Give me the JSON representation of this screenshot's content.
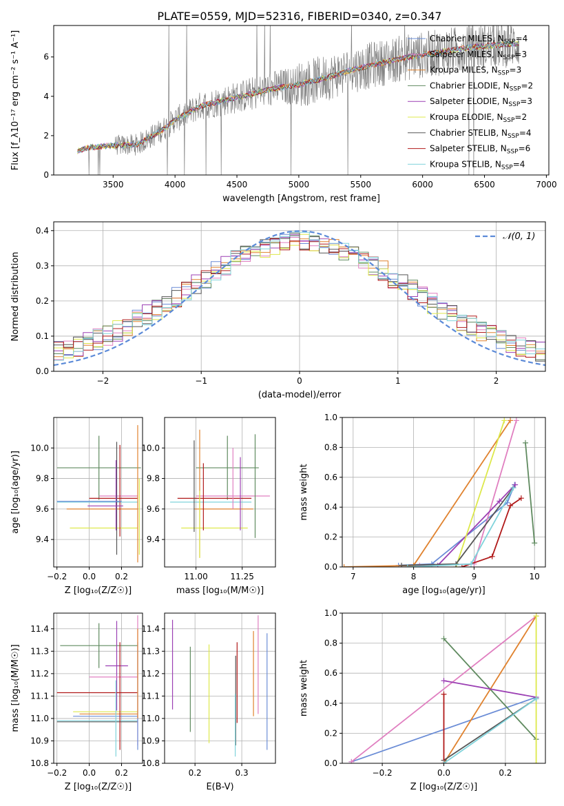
{
  "figure": {
    "title": "PLATE=0559, MJD=52316, FIBERID=0340, z=0.347"
  },
  "colors": {
    "chabrier_miles": "#6a8cd6",
    "salpeter_miles": "#e07fc0",
    "kroupa_miles": "#e0822e",
    "chabrier_elodie": "#5f8a5f",
    "salpeter_elodie": "#9b3fb3",
    "kroupa_elodie": "#dde84a",
    "chabrier_stelib": "#555555",
    "salpeter_stelib": "#b01818",
    "kroupa_stelib": "#7fd3db",
    "observed": "#808080",
    "normal": "#5b8ad8",
    "grid": "#b0b0b0"
  },
  "chart_data": [
    {
      "id": "spectrum",
      "type": "line",
      "title": "PLATE=0559, MJD=52316, FIBERID=0340, z=0.347",
      "xlabel": "wavelength [Angstrom, rest frame]",
      "ylabel": "Flux [f_λ10⁻¹⁷ erg cm⁻² s⁻¹ A⁻¹]",
      "xlim": [
        3020,
        7020
      ],
      "ylim": [
        0,
        7.6
      ],
      "xticks": [
        3500,
        4000,
        4500,
        5000,
        5500,
        6000,
        6500,
        7000
      ],
      "yticks": [
        0,
        2,
        4,
        6
      ],
      "grid": false,
      "legend_position": "top-right",
      "legend": [
        {
          "name": "Chabrier MILES, N",
          "sub": "SSP",
          "suffix": "=4",
          "color": "chabrier_miles"
        },
        {
          "name": "Salpeter MILES, N",
          "sub": "SSP",
          "suffix": "=3",
          "color": "salpeter_miles"
        },
        {
          "name": "Kroupa MILES, N",
          "sub": "SSP",
          "suffix": "=3",
          "color": "kroupa_miles"
        },
        {
          "name": "Chabrier ELODIE, N",
          "sub": "SSP",
          "suffix": "=2",
          "color": "chabrier_elodie"
        },
        {
          "name": "Salpeter ELODIE, N",
          "sub": "SSP",
          "suffix": "=3",
          "color": "salpeter_elodie"
        },
        {
          "name": "Kroupa ELODIE, N",
          "sub": "SSP",
          "suffix": "=2",
          "color": "kroupa_elodie"
        },
        {
          "name": "Chabrier STELIB, N",
          "sub": "SSP",
          "suffix": "=4",
          "color": "chabrier_stelib"
        },
        {
          "name": "Salpeter STELIB, N",
          "sub": "SSP",
          "suffix": "=6",
          "color": "salpeter_stelib"
        },
        {
          "name": "Kroupa STELIB, N",
          "sub": "SSP",
          "suffix": "=4",
          "color": "kroupa_stelib"
        }
      ],
      "continuum": {
        "x": [
          3210,
          3300,
          3500,
          3700,
          3900,
          4000,
          4200,
          4400,
          4600,
          4800,
          5000,
          5200,
          5400,
          5600,
          5800,
          6000,
          6200,
          6400,
          6600,
          6800
        ],
        "y": [
          1.2,
          1.4,
          1.5,
          1.55,
          2.3,
          2.8,
          3.5,
          3.8,
          4.1,
          4.4,
          4.6,
          4.9,
          5.3,
          5.6,
          5.9,
          6.1,
          6.3,
          6.5,
          6.6,
          6.7
        ]
      }
    },
    {
      "id": "residuals",
      "type": "line",
      "xlabel": "(data-model)/error",
      "ylabel": "Normed distribution",
      "xlim": [
        -2.5,
        2.5
      ],
      "ylim": [
        0,
        0.425
      ],
      "xticks": [
        -2,
        -1,
        0,
        1,
        2
      ],
      "yticks": [
        0.0,
        0.1,
        0.2,
        0.3,
        0.4
      ],
      "grid": true,
      "legend_position": "top-right",
      "legend_label": "𝒩(0, 1)",
      "normal": {
        "mean": 0,
        "sigma": 1
      }
    },
    {
      "id": "age_vs_Z",
      "type": "scatter",
      "xlabel": "Z [log₁₀(Z/Z☉)]",
      "ylabel": "age  [log₁₀(age/yr)]",
      "xlim": [
        -0.22,
        0.33
      ],
      "ylim": [
        9.22,
        10.2
      ],
      "xticks": [
        -0.2,
        0.0,
        0.2
      ],
      "yticks": [
        9.4,
        9.6,
        9.8,
        10.0
      ],
      "grid": true,
      "points": [
        {
          "x": 0.06,
          "y": 9.87,
          "xerr": 0.26,
          "yerr": 0.21,
          "color": "chabrier_elodie"
        },
        {
          "x": 0.18,
          "y": 9.685,
          "xerr": 0.12,
          "yerr": 0.0,
          "color": "salpeter_miles"
        },
        {
          "x": 0.15,
          "y": 9.67,
          "xerr": 0.15,
          "yerr": 0.0,
          "color": "salpeter_stelib"
        },
        {
          "x": 0.05,
          "y": 9.645,
          "xerr": 0.25,
          "yerr": 0.0,
          "color": "kroupa_stelib"
        },
        {
          "x": 0.08,
          "y": 9.6,
          "xerr": 0.22,
          "yerr": 0.0,
          "color": "kroupa_miles"
        },
        {
          "x": 0.09,
          "y": 9.475,
          "xerr": 0.21,
          "yerr": 0.0,
          "color": "kroupa_elodie"
        },
        {
          "x": 0.17,
          "y": 9.67,
          "xerr": 0.0,
          "yerr": 0.37,
          "color": "chabrier_stelib"
        },
        {
          "x": 0.166,
          "y": 9.69,
          "xerr": 0.0,
          "yerr": 0.23,
          "color": "salpeter_elodie"
        },
        {
          "x": 0.19,
          "y": 9.72,
          "xerr": 0.0,
          "yerr": 0.3,
          "color": "salpeter_stelib"
        },
        {
          "x": 0.3,
          "y": 9.7,
          "xerr": 0.0,
          "yerr": 0.45,
          "color": "kroupa_miles"
        },
        {
          "x": 0.31,
          "y": 9.55,
          "xerr": 0.0,
          "yerr": 0.25,
          "color": "kroupa_elodie"
        },
        {
          "x": 0.1,
          "y": 9.62,
          "xerr": 0.11,
          "yerr": 0.0,
          "color": "salpeter_elodie"
        },
        {
          "x": 0.0,
          "y": 9.65,
          "xerr": 0.2,
          "yerr": 0.0,
          "color": "chabrier_miles"
        }
      ]
    },
    {
      "id": "age_vs_mass",
      "type": "scatter",
      "xlabel": "mass [log₁₀(M/M☉)]",
      "ylabel": "",
      "xlim": [
        10.83,
        11.43
      ],
      "ylim": [
        9.22,
        10.2
      ],
      "xticks": [
        11.0,
        11.25
      ],
      "yticks": [
        9.4,
        9.6,
        9.8,
        10.0
      ],
      "grid": true,
      "points": [
        {
          "x": 11.17,
          "y": 9.87,
          "xerr": 0.17,
          "yerr": 0.21,
          "color": "chabrier_elodie"
        },
        {
          "x": 11.2,
          "y": 9.685,
          "xerr": 0.2,
          "yerr": 0.0,
          "color": "salpeter_miles"
        },
        {
          "x": 11.1,
          "y": 9.67,
          "xerr": 0.2,
          "yerr": 0.0,
          "color": "salpeter_stelib"
        },
        {
          "x": 11.08,
          "y": 9.645,
          "xerr": 0.22,
          "yerr": 0.0,
          "color": "kroupa_stelib"
        },
        {
          "x": 11.15,
          "y": 9.6,
          "xerr": 0.16,
          "yerr": 0.0,
          "color": "kroupa_miles"
        },
        {
          "x": 11.1,
          "y": 9.475,
          "xerr": 0.18,
          "yerr": 0.0,
          "color": "kroupa_elodie"
        },
        {
          "x": 10.99,
          "y": 9.75,
          "xerr": 0.0,
          "yerr": 0.3,
          "color": "chabrier_stelib"
        },
        {
          "x": 11.02,
          "y": 9.7,
          "xerr": 0.0,
          "yerr": 0.42,
          "color": "kroupa_miles"
        },
        {
          "x": 11.04,
          "y": 9.68,
          "xerr": 0.0,
          "yerr": 0.22,
          "color": "salpeter_stelib"
        },
        {
          "x": 11.02,
          "y": 9.5,
          "xerr": 0.0,
          "yerr": 0.22,
          "color": "kroupa_elodie"
        },
        {
          "x": 11.2,
          "y": 9.8,
          "xerr": 0.0,
          "yerr": 0.2,
          "color": "salpeter_miles"
        },
        {
          "x": 11.24,
          "y": 9.7,
          "xerr": 0.0,
          "yerr": 0.24,
          "color": "salpeter_elodie"
        },
        {
          "x": 11.32,
          "y": 9.75,
          "xerr": 0.0,
          "yerr": 0.34,
          "color": "chabrier_elodie"
        }
      ]
    },
    {
      "id": "mass_weight_vs_age",
      "type": "line",
      "xlabel": "age  [log₁₀(age/yr)]",
      "ylabel": "mass weight",
      "xlim": [
        6.82,
        10.18
      ],
      "ylim": [
        0,
        1.0
      ],
      "xticks": [
        7,
        8,
        9,
        10
      ],
      "yticks": [
        0.0,
        0.2,
        0.4,
        0.6,
        0.8,
        1.0
      ],
      "grid": true,
      "series": [
        {
          "color": "chabrier_miles",
          "x": [
            7.75,
            8.3,
            9.55,
            9.67
          ],
          "y": [
            0.01,
            0.02,
            0.43,
            0.55
          ]
        },
        {
          "color": "salpeter_miles",
          "x": [
            8.1,
            9.0,
            9.7
          ],
          "y": [
            0.01,
            0.02,
            0.98
          ]
        },
        {
          "color": "kroupa_miles",
          "x": [
            6.85,
            8.0,
            9.6
          ],
          "y": [
            0.0,
            0.01,
            0.98
          ]
        },
        {
          "color": "chabrier_elodie",
          "x": [
            9.85,
            10.0
          ],
          "y": [
            0.83,
            0.16
          ]
        },
        {
          "color": "salpeter_elodie",
          "x": [
            8.4,
            9.42,
            9.68
          ],
          "y": [
            0.01,
            0.44,
            0.55
          ]
        },
        {
          "color": "kroupa_elodie",
          "x": [
            8.7,
            9.5
          ],
          "y": [
            0.0,
            0.98
          ]
        },
        {
          "color": "chabrier_stelib",
          "x": [
            7.8,
            8.7,
            9.65
          ],
          "y": [
            0.01,
            0.02,
            0.53
          ]
        },
        {
          "color": "salpeter_stelib",
          "x": [
            8.8,
            9.3,
            9.6,
            9.78
          ],
          "y": [
            0.0,
            0.07,
            0.41,
            0.46
          ]
        },
        {
          "color": "kroupa_stelib",
          "x": [
            7.9,
            8.95,
            9.65
          ],
          "y": [
            0.0,
            0.02,
            0.53
          ]
        }
      ]
    },
    {
      "id": "mass_vs_Z",
      "type": "scatter",
      "xlabel": "Z [log₁₀(Z/Z☉)]",
      "ylabel": "mass [log₁₀(M/M☉)]",
      "xlim": [
        -0.22,
        0.33
      ],
      "ylim": [
        10.8,
        11.47
      ],
      "xticks": [
        -0.2,
        0.0,
        0.2
      ],
      "yticks": [
        10.8,
        10.9,
        11.0,
        11.1,
        11.2,
        11.3,
        11.4
      ],
      "grid": true,
      "points": [
        {
          "x": 0.06,
          "y": 11.325,
          "xerr": 0.24,
          "yerr": 0.1,
          "color": "chabrier_elodie"
        },
        {
          "x": 0.17,
          "y": 11.235,
          "xerr": 0.07,
          "yerr": 0.2,
          "color": "salpeter_elodie"
        },
        {
          "x": 0.15,
          "y": 11.185,
          "xerr": 0.15,
          "yerr": 0.0,
          "color": "salpeter_miles"
        },
        {
          "x": 0.05,
          "y": 11.115,
          "xerr": 0.25,
          "yerr": 0.0,
          "color": "salpeter_stelib"
        },
        {
          "x": 0.1,
          "y": 11.03,
          "xerr": 0.2,
          "yerr": 0.0,
          "color": "kroupa_elodie"
        },
        {
          "x": 0.12,
          "y": 11.02,
          "xerr": 0.18,
          "yerr": 0.0,
          "color": "kroupa_miles"
        },
        {
          "x": 0.1,
          "y": 11.01,
          "xerr": 0.2,
          "yerr": 0.0,
          "color": "chabrier_miles"
        },
        {
          "x": 0.05,
          "y": 10.99,
          "xerr": 0.25,
          "yerr": 0.0,
          "color": "kroupa_stelib"
        },
        {
          "x": 0.05,
          "y": 10.985,
          "xerr": 0.25,
          "yerr": 0.0,
          "color": "chabrier_stelib"
        },
        {
          "x": 0.165,
          "y": 11.0,
          "xerr": 0.0,
          "yerr": 0.17,
          "color": "kroupa_stelib"
        },
        {
          "x": 0.19,
          "y": 11.1,
          "xerr": 0.0,
          "yerr": 0.24,
          "color": "salpeter_stelib"
        },
        {
          "x": 0.3,
          "y": 11.17,
          "xerr": 0.0,
          "yerr": 0.29,
          "color": "salpeter_miles"
        },
        {
          "x": 0.3,
          "y": 11.1,
          "xerr": 0.0,
          "yerr": 0.24,
          "color": "chabrier_miles"
        },
        {
          "x": 0.3,
          "y": 11.2,
          "xerr": 0.0,
          "yerr": 0.2,
          "color": "kroupa_miles"
        }
      ]
    },
    {
      "id": "mass_vs_ebv",
      "type": "scatter",
      "xlabel": "E(B-V)",
      "ylabel": "",
      "xlim": [
        0.135,
        0.372
      ],
      "ylim": [
        10.8,
        11.47
      ],
      "xticks": [
        0.2,
        0.3
      ],
      "yticks": [
        10.8,
        10.9,
        11.0,
        11.1,
        11.2,
        11.3,
        11.4
      ],
      "grid": true,
      "points": [
        {
          "x": 0.152,
          "y": 11.24,
          "xerr": 0.0,
          "yerr": 0.2,
          "color": "salpeter_elodie"
        },
        {
          "x": 0.19,
          "y": 11.13,
          "xerr": 0.0,
          "yerr": 0.19,
          "color": "chabrier_elodie"
        },
        {
          "x": 0.23,
          "y": 11.11,
          "xerr": 0.0,
          "yerr": 0.22,
          "color": "kroupa_elodie"
        },
        {
          "x": 0.287,
          "y": 11.08,
          "xerr": 0.0,
          "yerr": 0.2,
          "color": "chabrier_stelib"
        },
        {
          "x": 0.29,
          "y": 11.16,
          "xerr": 0.0,
          "yerr": 0.18,
          "color": "salpeter_stelib"
        },
        {
          "x": 0.286,
          "y": 10.97,
          "xerr": 0.0,
          "yerr": 0.14,
          "color": "kroupa_stelib"
        },
        {
          "x": 0.325,
          "y": 11.2,
          "xerr": 0.0,
          "yerr": 0.19,
          "color": "kroupa_miles"
        },
        {
          "x": 0.335,
          "y": 11.24,
          "xerr": 0.0,
          "yerr": 0.22,
          "color": "salpeter_miles"
        },
        {
          "x": 0.354,
          "y": 11.12,
          "xerr": 0.0,
          "yerr": 0.26,
          "color": "chabrier_miles"
        }
      ]
    },
    {
      "id": "mass_weight_vs_Z",
      "type": "line",
      "xlabel": "Z [log₁₀(Z/Z☉)]",
      "ylabel": "mass weight",
      "xlim": [
        -0.33,
        0.33
      ],
      "ylim": [
        0,
        1.0
      ],
      "xticks": [
        -0.2,
        0.0,
        0.2
      ],
      "yticks": [
        0.0,
        0.2,
        0.4,
        0.6,
        0.8,
        1.0
      ],
      "grid": true,
      "series": [
        {
          "color": "chabrier_miles",
          "x": [
            -0.3,
            0.3
          ],
          "y": [
            0.01,
            0.44
          ]
        },
        {
          "color": "salpeter_miles",
          "x": [
            -0.3,
            0.3
          ],
          "y": [
            0.01,
            0.98
          ]
        },
        {
          "color": "kroupa_miles",
          "x": [
            0.0,
            0.3
          ],
          "y": [
            0.0,
            0.98
          ]
        },
        {
          "color": "chabrier_elodie",
          "x": [
            0.0,
            0.3
          ],
          "y": [
            0.83,
            0.16
          ]
        },
        {
          "color": "salpeter_elodie",
          "x": [
            0.0,
            0.3
          ],
          "y": [
            0.55,
            0.44
          ]
        },
        {
          "color": "kroupa_elodie",
          "x": [
            0.3,
            0.3
          ],
          "y": [
            0.0,
            0.98
          ]
        },
        {
          "color": "chabrier_stelib",
          "x": [
            0.0,
            0.3
          ],
          "y": [
            0.02,
            0.43
          ]
        },
        {
          "color": "salpeter_stelib",
          "x": [
            0.0,
            0.0
          ],
          "y": [
            0.0,
            0.46
          ]
        },
        {
          "color": "kroupa_stelib",
          "x": [
            0.0,
            0.3
          ],
          "y": [
            0.0,
            0.43
          ]
        }
      ]
    }
  ]
}
